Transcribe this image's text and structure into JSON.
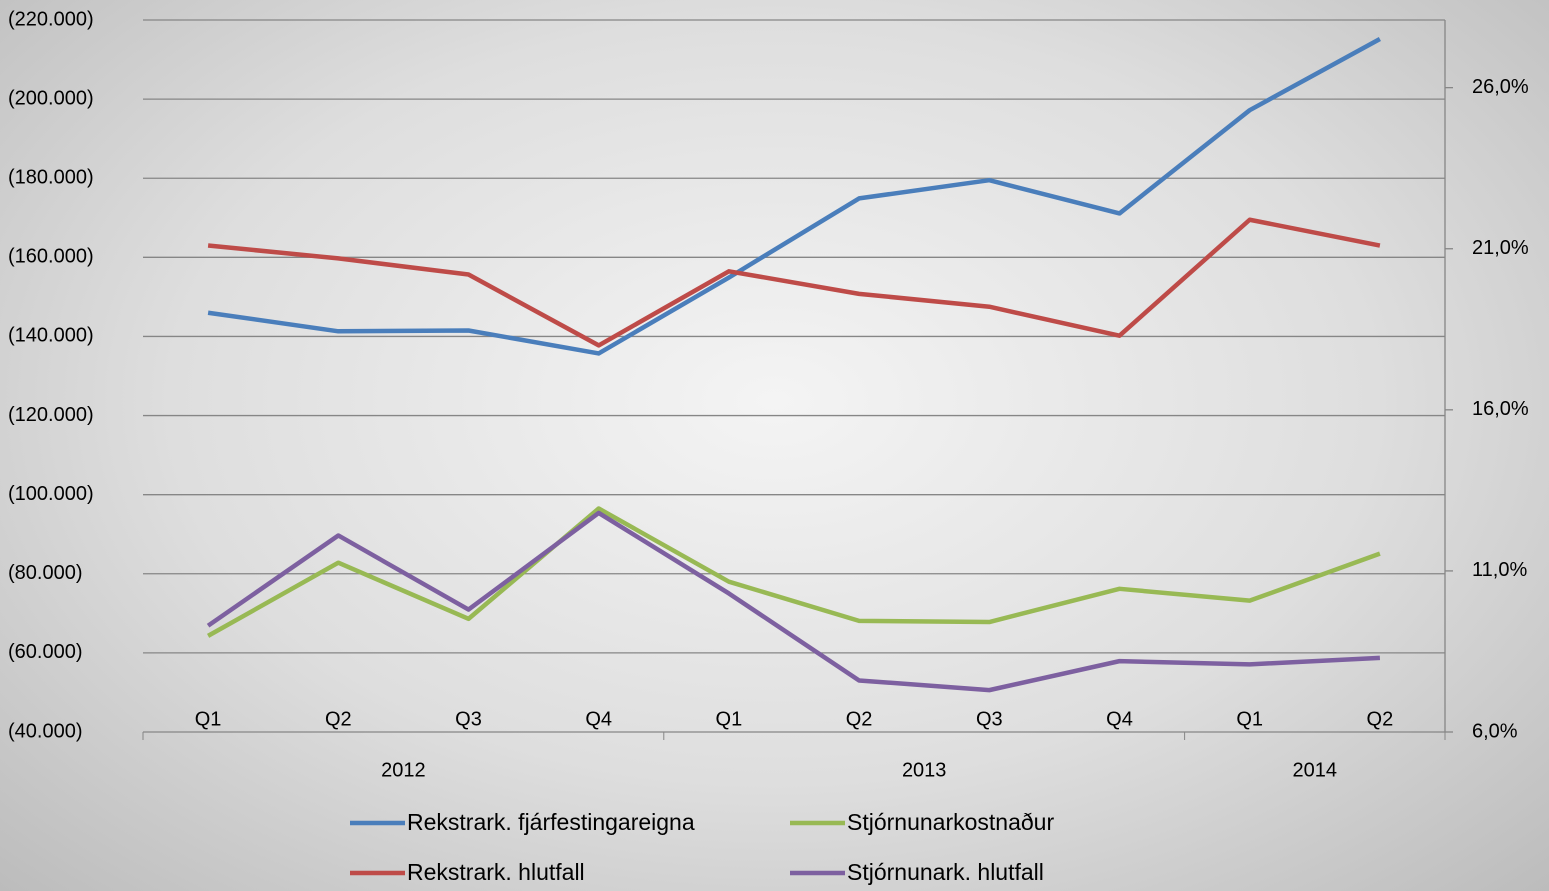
{
  "chart_data": {
    "type": "line",
    "categories": [
      "Q1",
      "Q2",
      "Q3",
      "Q4",
      "Q1",
      "Q2",
      "Q3",
      "Q4",
      "Q1",
      "Q2"
    ],
    "groups": [
      "2012",
      "2013",
      "2014"
    ],
    "group_sizes": [
      4,
      4,
      2
    ],
    "series": [
      {
        "name": "Rekstrark. fjárfestingareigna",
        "color": "#4a7ebb",
        "values": [
          -146000,
          -141300,
          -141500,
          -135700,
          -154900,
          -174900,
          -179500,
          -171100,
          -197200,
          -215200
        ]
      },
      {
        "name": "Stjórnunarkostnaður",
        "color": "#98b954",
        "values": [
          -64300,
          -82800,
          -68600,
          -96500,
          -78000,
          -68100,
          -67800,
          -76200,
          -73200,
          -85100
        ]
      },
      {
        "name": "Rekstrark. hlutfall",
        "color": "#be4b48",
        "axis": "y2",
        "values": [
          21.1,
          20.7,
          20.2,
          18.0,
          20.3,
          19.6,
          19.2,
          18.3,
          21.9,
          21.1
        ]
      },
      {
        "name": "Stjórnunark. hlutfall",
        "color": "#7d60a0",
        "axis": "y2",
        "values": [
          9.3,
          12.1,
          9.8,
          12.8,
          10.3,
          7.6,
          7.3,
          8.2,
          8.1,
          8.3
        ]
      }
    ],
    "ylim": [
      -40000,
      -220000
    ],
    "yticks": [
      {
        "value": -40000,
        "label": "(40.000)"
      },
      {
        "value": -60000,
        "label": "(60.000)"
      },
      {
        "value": -80000,
        "label": "(80.000)"
      },
      {
        "value": -100000,
        "label": "(100.000)"
      },
      {
        "value": -120000,
        "label": "(120.000)"
      },
      {
        "value": -140000,
        "label": "(140.000)"
      },
      {
        "value": -160000,
        "label": "(160.000)"
      },
      {
        "value": -180000,
        "label": "(180.000)"
      },
      {
        "value": -200000,
        "label": "(200.000)"
      },
      {
        "value": -220000,
        "label": "(220.000)"
      }
    ],
    "y2lim": [
      6,
      28.1
    ],
    "y2ticks": [
      {
        "value": 6,
        "label": "6,0%"
      },
      {
        "value": 11,
        "label": "11,0%"
      },
      {
        "value": 16,
        "label": "16,0%"
      },
      {
        "value": 21,
        "label": "21,0%"
      },
      {
        "value": 26,
        "label": "26,0%"
      }
    ],
    "grid": true,
    "legend": "bottom"
  }
}
